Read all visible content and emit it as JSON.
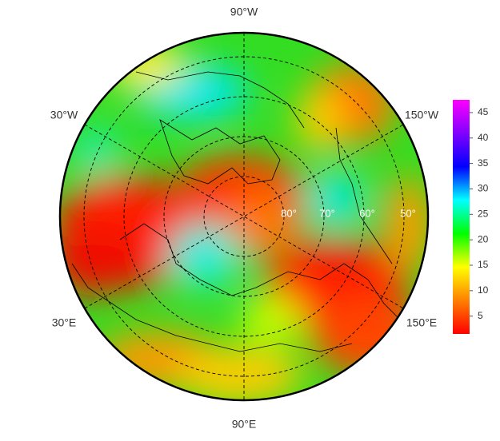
{
  "map": {
    "longitude_labels": [
      "90°W",
      "150°W",
      "150°E",
      "90°E",
      "30°E",
      "30°W"
    ],
    "latitude_labels": [
      "80°",
      "70°",
      "60°",
      "50°"
    ]
  },
  "colorbar": {
    "colors": [
      "#ff0000",
      "#ff8000",
      "#ffff00",
      "#00ff00",
      "#00ffff",
      "#0000ff",
      "#8000ff",
      "#ff00ff"
    ],
    "lim": [
      1.5,
      47.5
    ],
    "ticks": [
      5,
      10,
      15,
      20,
      25,
      30,
      35,
      40,
      45
    ]
  }
}
